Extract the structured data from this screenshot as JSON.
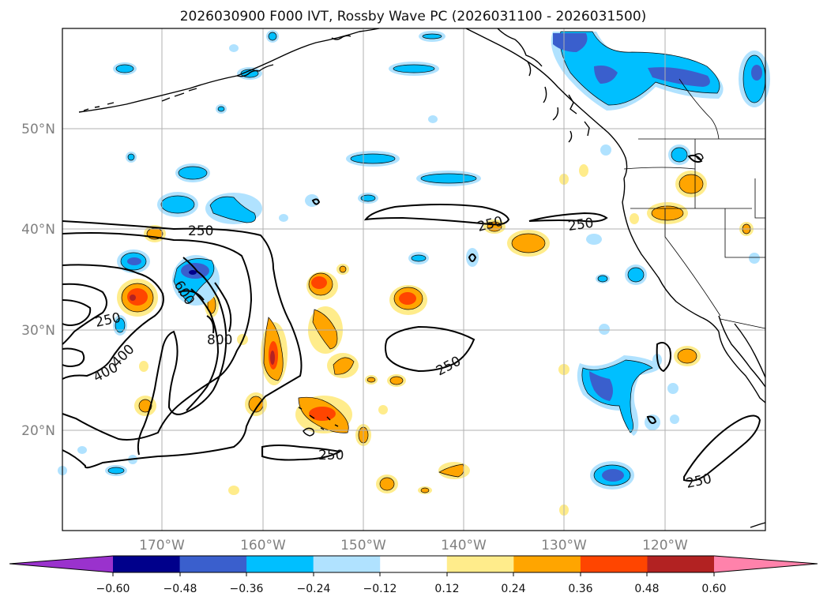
{
  "title": "2026030900 F000 IVT, Rossby Wave PC (2026031100 - 2026031500)",
  "map": {
    "lat_labels": [
      "50°N",
      "40°N",
      "30°N",
      "20°N"
    ],
    "lon_labels": [
      "170°W",
      "160°W",
      "150°W",
      "140°W",
      "130°W",
      "120°W"
    ],
    "extent": {
      "lon_min": -180,
      "lon_max": -110,
      "lat_min": 10,
      "lat_max": 60
    },
    "gridlines": true
  },
  "contour_labels": [
    "250",
    "250",
    "250",
    "250",
    "250",
    "250",
    "250",
    "600",
    "800",
    "400",
    "400"
  ],
  "colorbar": {
    "tick_labels": [
      "−0.60",
      "−0.48",
      "−0.36",
      "−0.24",
      "−0.12",
      "0.12",
      "0.24",
      "0.36",
      "0.48",
      "0.60"
    ],
    "colors": [
      "#9a32cd",
      "#00008b",
      "#3a5fcd",
      "#00bfff",
      "#b0e2ff",
      "#ffffff",
      "#ffec8b",
      "#ffa500",
      "#ff4500",
      "#b22222",
      "#ff82ab"
    ],
    "extend": "both"
  }
}
